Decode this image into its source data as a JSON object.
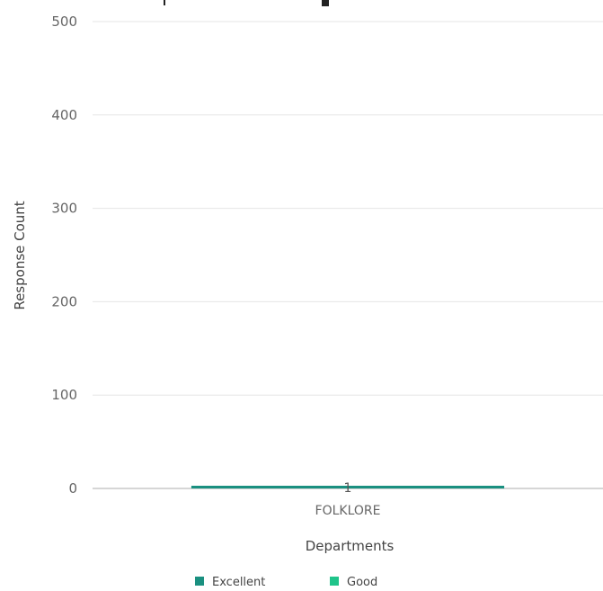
{
  "chart_data": {
    "type": "bar",
    "title": "",
    "xlabel": "Departments",
    "ylabel": "Response Count",
    "categories": [
      "FOLKLORE"
    ],
    "series": [
      {
        "name": "Excellent",
        "values": [
          1
        ],
        "color": "#1a9080"
      },
      {
        "name": "Good",
        "values": [
          0
        ],
        "color": "#1fc48a"
      }
    ],
    "ylim": [
      0,
      500
    ],
    "yticks": [
      0,
      100,
      200,
      300,
      400,
      500
    ],
    "data_labels": [
      "1"
    ],
    "grid": true,
    "legend": "bottom-center",
    "stacked": true
  }
}
